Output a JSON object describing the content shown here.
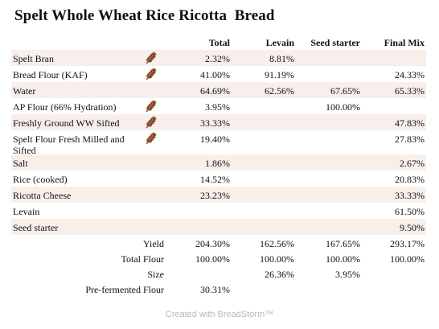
{
  "title": "Spelt Whole Wheat Rice Ricotta  Bread",
  "columns": [
    "Total",
    "Levain",
    "Seed starter",
    "Final Mix"
  ],
  "ingredients": [
    {
      "name": "Spelt Bran",
      "flour_icon": "wheat-icon",
      "total": "2.32%",
      "levain": "8.81%",
      "seed": "",
      "final": ""
    },
    {
      "name": "Bread Flour (KAF)",
      "flour_icon": "wheat-icon",
      "total": "41.00%",
      "levain": "91.19%",
      "seed": "",
      "final": "24.33%"
    },
    {
      "name": "Water",
      "flour_icon": "",
      "total": "64.69%",
      "levain": "62.56%",
      "seed": "67.65%",
      "final": "65.33%"
    },
    {
      "name": "AP Flour (66% Hydration)",
      "flour_icon": "wheat-icon",
      "total": "3.95%",
      "levain": "",
      "seed": "100.00%",
      "final": ""
    },
    {
      "name": "Freshly Ground WW Sifted",
      "flour_icon": "wheat-icon",
      "total": "33.33%",
      "levain": "",
      "seed": "",
      "final": "47.83%"
    },
    {
      "name": "Spelt Flour Fresh Milled and Sifted",
      "flour_icon": "wheat-icon",
      "total": "19.40%",
      "levain": "",
      "seed": "",
      "final": "27.83%"
    },
    {
      "name": "Salt",
      "flour_icon": "",
      "total": "1.86%",
      "levain": "",
      "seed": "",
      "final": "2.67%"
    },
    {
      "name": "Rice (cooked)",
      "flour_icon": "",
      "total": "14.52%",
      "levain": "",
      "seed": "",
      "final": "20.83%"
    },
    {
      "name": "Ricotta Cheese",
      "flour_icon": "",
      "total": "23.23%",
      "levain": "",
      "seed": "",
      "final": "33.33%"
    },
    {
      "name": "Levain",
      "flour_icon": "",
      "total": "",
      "levain": "",
      "seed": "",
      "final": "61.50%"
    },
    {
      "name": "Seed starter",
      "flour_icon": "",
      "total": "",
      "levain": "",
      "seed": "",
      "final": "9.50%"
    }
  ],
  "summary": [
    {
      "label": "Yield",
      "total": "204.30%",
      "levain": "162.56%",
      "seed": "167.65%",
      "final": "293.17%"
    },
    {
      "label": "Total Flour",
      "total": "100.00%",
      "levain": "100.00%",
      "seed": "100.00%",
      "final": "100.00%"
    },
    {
      "label": "Size",
      "total": "",
      "levain": "26.36%",
      "seed": "3.95%",
      "final": ""
    },
    {
      "label": "Pre-fermented Flour",
      "total": "30.31%",
      "levain": "",
      "seed": "",
      "final": ""
    }
  ],
  "footer": "Created with BreadStorm™",
  "colors": {
    "row_shade": "#f8efea",
    "wheat_icon": "#8a4a2a",
    "footer_text": "#b8b8b8"
  }
}
